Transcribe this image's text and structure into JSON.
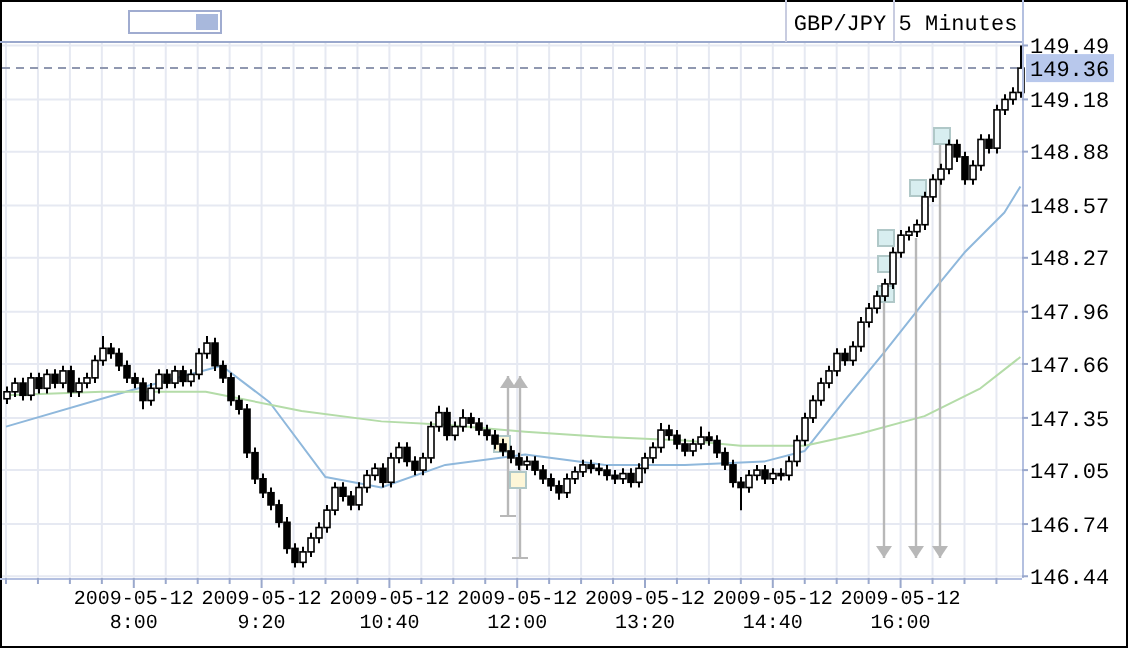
{
  "chart_data": {
    "type": "candlestick",
    "title": "GBP/JPY",
    "subtitle": "5 Minutes",
    "x": [
      "2009-05-12T06:40",
      "2009-05-12T06:45",
      "2009-05-12T06:50",
      "2009-05-12T06:55",
      "2009-05-12T07:00",
      "2009-05-12T07:05",
      "2009-05-12T07:10",
      "2009-05-12T07:15",
      "2009-05-12T07:20",
      "2009-05-12T07:25",
      "2009-05-12T07:30",
      "2009-05-12T07:35",
      "2009-05-12T07:40",
      "2009-05-12T07:45",
      "2009-05-12T07:50",
      "2009-05-12T07:55",
      "2009-05-12T08:00",
      "2009-05-12T08:05",
      "2009-05-12T08:10",
      "2009-05-12T08:15",
      "2009-05-12T08:20",
      "2009-05-12T08:25",
      "2009-05-12T08:30",
      "2009-05-12T08:35",
      "2009-05-12T08:40",
      "2009-05-12T08:45",
      "2009-05-12T08:50",
      "2009-05-12T08:55",
      "2009-05-12T09:00",
      "2009-05-12T09:05",
      "2009-05-12T09:10",
      "2009-05-12T09:15",
      "2009-05-12T09:20",
      "2009-05-12T09:25",
      "2009-05-12T09:30",
      "2009-05-12T09:35",
      "2009-05-12T09:40",
      "2009-05-12T09:45",
      "2009-05-12T09:50",
      "2009-05-12T09:55",
      "2009-05-12T10:00",
      "2009-05-12T10:05",
      "2009-05-12T10:10",
      "2009-05-12T10:15",
      "2009-05-12T10:20",
      "2009-05-12T10:25",
      "2009-05-12T10:30",
      "2009-05-12T10:35",
      "2009-05-12T10:40",
      "2009-05-12T10:45",
      "2009-05-12T10:50",
      "2009-05-12T10:55",
      "2009-05-12T11:00",
      "2009-05-12T11:05",
      "2009-05-12T11:10",
      "2009-05-12T11:15",
      "2009-05-12T11:20",
      "2009-05-12T11:25",
      "2009-05-12T11:30",
      "2009-05-12T11:35",
      "2009-05-12T11:40",
      "2009-05-12T11:45",
      "2009-05-12T11:50",
      "2009-05-12T11:55",
      "2009-05-12T12:00",
      "2009-05-12T12:05",
      "2009-05-12T12:10",
      "2009-05-12T12:15",
      "2009-05-12T12:20",
      "2009-05-12T12:25",
      "2009-05-12T12:30",
      "2009-05-12T12:35",
      "2009-05-12T12:40",
      "2009-05-12T12:45",
      "2009-05-12T12:50",
      "2009-05-12T12:55",
      "2009-05-12T13:00",
      "2009-05-12T13:05",
      "2009-05-12T13:10",
      "2009-05-12T13:15",
      "2009-05-12T13:20",
      "2009-05-12T13:25",
      "2009-05-12T13:30",
      "2009-05-12T13:35",
      "2009-05-12T13:40",
      "2009-05-12T13:45",
      "2009-05-12T13:50",
      "2009-05-12T13:55",
      "2009-05-12T14:00",
      "2009-05-12T14:05",
      "2009-05-12T14:10",
      "2009-05-12T14:15",
      "2009-05-12T14:20",
      "2009-05-12T14:25",
      "2009-05-12T14:30",
      "2009-05-12T14:35",
      "2009-05-12T14:40",
      "2009-05-12T14:45",
      "2009-05-12T14:50",
      "2009-05-12T14:55",
      "2009-05-12T15:00",
      "2009-05-12T15:05",
      "2009-05-12T15:10",
      "2009-05-12T15:15",
      "2009-05-12T15:20",
      "2009-05-12T15:25",
      "2009-05-12T15:30",
      "2009-05-12T15:35",
      "2009-05-12T15:40",
      "2009-05-12T15:45",
      "2009-05-12T15:50",
      "2009-05-12T15:55",
      "2009-05-12T16:00",
      "2009-05-12T16:05",
      "2009-05-12T16:10",
      "2009-05-12T16:15",
      "2009-05-12T16:20",
      "2009-05-12T16:25",
      "2009-05-12T16:30",
      "2009-05-12T16:35",
      "2009-05-12T16:40",
      "2009-05-12T16:45",
      "2009-05-12T16:50",
      "2009-05-12T16:55",
      "2009-05-12T17:00",
      "2009-05-12T17:05",
      "2009-05-12T17:10",
      "2009-05-12T17:15"
    ],
    "ohlc": [
      [
        147.46,
        147.53,
        147.43,
        147.5
      ],
      [
        147.5,
        147.58,
        147.47,
        147.55
      ],
      [
        147.55,
        147.58,
        147.45,
        147.48
      ],
      [
        147.48,
        147.61,
        147.45,
        147.58
      ],
      [
        147.58,
        147.61,
        147.49,
        147.52
      ],
      [
        147.52,
        147.63,
        147.49,
        147.6
      ],
      [
        147.6,
        147.63,
        147.52,
        147.55
      ],
      [
        147.55,
        147.65,
        147.52,
        147.62
      ],
      [
        147.62,
        147.65,
        147.47,
        147.5
      ],
      [
        147.5,
        147.58,
        147.47,
        147.55
      ],
      [
        147.55,
        147.61,
        147.52,
        147.58
      ],
      [
        147.58,
        147.71,
        147.55,
        147.68
      ],
      [
        147.68,
        147.82,
        147.65,
        147.75
      ],
      [
        147.75,
        147.78,
        147.69,
        147.72
      ],
      [
        147.72,
        147.75,
        147.62,
        147.65
      ],
      [
        147.65,
        147.68,
        147.55,
        147.58
      ],
      [
        147.58,
        147.61,
        147.52,
        147.55
      ],
      [
        147.55,
        147.58,
        147.4,
        147.45
      ],
      [
        147.45,
        147.55,
        147.42,
        147.52
      ],
      [
        147.52,
        147.63,
        147.49,
        147.6
      ],
      [
        147.6,
        147.63,
        147.52,
        147.55
      ],
      [
        147.55,
        147.65,
        147.52,
        147.62
      ],
      [
        147.62,
        147.65,
        147.53,
        147.56
      ],
      [
        147.56,
        147.63,
        147.53,
        147.6
      ],
      [
        147.6,
        147.75,
        147.57,
        147.72
      ],
      [
        147.72,
        147.82,
        147.69,
        147.78
      ],
      [
        147.78,
        147.81,
        147.62,
        147.65
      ],
      [
        147.65,
        147.68,
        147.55,
        147.58
      ],
      [
        147.58,
        147.61,
        147.42,
        147.45
      ],
      [
        147.45,
        147.48,
        147.37,
        147.4
      ],
      [
        147.4,
        147.43,
        147.12,
        147.15
      ],
      [
        147.15,
        147.18,
        146.97,
        147.0
      ],
      [
        147.0,
        147.03,
        146.89,
        146.92
      ],
      [
        146.92,
        146.95,
        146.82,
        146.85
      ],
      [
        146.85,
        146.88,
        146.72,
        146.75
      ],
      [
        146.75,
        146.78,
        146.57,
        146.6
      ],
      [
        146.6,
        146.63,
        146.49,
        146.52
      ],
      [
        146.52,
        146.61,
        146.49,
        146.58
      ],
      [
        146.58,
        146.69,
        146.55,
        146.66
      ],
      [
        146.66,
        146.75,
        146.63,
        146.72
      ],
      [
        146.72,
        146.85,
        146.69,
        146.82
      ],
      [
        146.82,
        146.98,
        146.79,
        146.95
      ],
      [
        146.95,
        146.98,
        146.87,
        146.9
      ],
      [
        146.9,
        146.93,
        146.82,
        146.85
      ],
      [
        146.85,
        146.98,
        146.82,
        146.95
      ],
      [
        146.95,
        147.05,
        146.92,
        147.02
      ],
      [
        147.02,
        147.09,
        146.99,
        147.06
      ],
      [
        147.06,
        147.09,
        146.95,
        146.98
      ],
      [
        146.98,
        147.15,
        146.95,
        147.12
      ],
      [
        147.12,
        147.21,
        147.09,
        147.18
      ],
      [
        147.18,
        147.21,
        147.07,
        147.1
      ],
      [
        147.1,
        147.13,
        147.02,
        147.05
      ],
      [
        147.05,
        147.15,
        147.02,
        147.12
      ],
      [
        147.12,
        147.33,
        147.09,
        147.3
      ],
      [
        147.3,
        147.42,
        147.27,
        147.38
      ],
      [
        147.38,
        147.41,
        147.22,
        147.25
      ],
      [
        147.25,
        147.33,
        147.22,
        147.3
      ],
      [
        147.3,
        147.4,
        147.27,
        147.35
      ],
      [
        147.35,
        147.38,
        147.29,
        147.32
      ],
      [
        147.32,
        147.35,
        147.25,
        147.28
      ],
      [
        147.28,
        147.31,
        147.22,
        147.25
      ],
      [
        147.25,
        147.28,
        147.17,
        147.2
      ],
      [
        147.2,
        147.23,
        147.13,
        147.16
      ],
      [
        147.16,
        147.19,
        147.09,
        147.12
      ],
      [
        147.12,
        147.15,
        147.05,
        147.08
      ],
      [
        147.08,
        147.13,
        147.05,
        147.1
      ],
      [
        147.1,
        147.13,
        147.02,
        147.05
      ],
      [
        147.05,
        147.08,
        146.97,
        147.0
      ],
      [
        147.0,
        147.03,
        146.93,
        146.96
      ],
      [
        146.96,
        146.99,
        146.88,
        146.92
      ],
      [
        146.92,
        147.03,
        146.89,
        147.0
      ],
      [
        147.0,
        147.07,
        146.97,
        147.04
      ],
      [
        147.04,
        147.11,
        147.01,
        147.08
      ],
      [
        147.08,
        147.11,
        147.03,
        147.06
      ],
      [
        147.06,
        147.09,
        147.02,
        147.05
      ],
      [
        147.05,
        147.08,
        146.99,
        147.02
      ],
      [
        147.02,
        147.05,
        146.97,
        147.0
      ],
      [
        147.0,
        147.06,
        146.97,
        147.03
      ],
      [
        147.03,
        147.06,
        146.95,
        146.98
      ],
      [
        146.98,
        147.09,
        146.95,
        147.06
      ],
      [
        147.06,
        147.15,
        147.03,
        147.12
      ],
      [
        147.12,
        147.21,
        147.09,
        147.18
      ],
      [
        147.18,
        147.32,
        147.15,
        147.28
      ],
      [
        147.28,
        147.31,
        147.22,
        147.25
      ],
      [
        147.25,
        147.28,
        147.17,
        147.2
      ],
      [
        147.2,
        147.23,
        147.13,
        147.16
      ],
      [
        147.16,
        147.23,
        147.13,
        147.2
      ],
      [
        147.2,
        147.3,
        147.17,
        147.24
      ],
      [
        147.24,
        147.27,
        147.19,
        147.22
      ],
      [
        147.22,
        147.25,
        147.12,
        147.15
      ],
      [
        147.15,
        147.18,
        147.05,
        147.08
      ],
      [
        147.08,
        147.11,
        146.95,
        146.98
      ],
      [
        146.98,
        147.01,
        146.82,
        146.95
      ],
      [
        146.95,
        147.05,
        146.92,
        147.02
      ],
      [
        147.02,
        147.08,
        146.99,
        147.05
      ],
      [
        147.05,
        147.08,
        146.97,
        147.0
      ],
      [
        147.0,
        147.06,
        146.97,
        147.03
      ],
      [
        147.03,
        147.06,
        146.99,
        147.02
      ],
      [
        147.02,
        147.13,
        146.99,
        147.1
      ],
      [
        147.1,
        147.25,
        147.07,
        147.22
      ],
      [
        147.22,
        147.38,
        147.19,
        147.35
      ],
      [
        147.35,
        147.48,
        147.32,
        147.45
      ],
      [
        147.45,
        147.58,
        147.42,
        147.55
      ],
      [
        147.55,
        147.65,
        147.52,
        147.62
      ],
      [
        147.62,
        147.75,
        147.59,
        147.72
      ],
      [
        147.72,
        147.75,
        147.65,
        147.68
      ],
      [
        147.68,
        147.79,
        147.65,
        147.76
      ],
      [
        147.76,
        147.93,
        147.73,
        147.9
      ],
      [
        147.9,
        148.01,
        147.87,
        147.98
      ],
      [
        147.98,
        148.08,
        147.95,
        148.05
      ],
      [
        148.05,
        148.15,
        148.02,
        148.12
      ],
      [
        148.12,
        148.33,
        148.09,
        148.3
      ],
      [
        148.3,
        148.43,
        148.27,
        148.4
      ],
      [
        148.4,
        148.45,
        148.37,
        148.42
      ],
      [
        148.42,
        148.49,
        148.39,
        148.46
      ],
      [
        148.46,
        148.65,
        148.43,
        148.62
      ],
      [
        148.62,
        148.75,
        148.59,
        148.72
      ],
      [
        148.72,
        148.81,
        148.69,
        148.78
      ],
      [
        148.78,
        148.95,
        148.75,
        148.92
      ],
      [
        148.92,
        148.95,
        148.82,
        148.85
      ],
      [
        148.85,
        148.88,
        148.69,
        148.72
      ],
      [
        148.72,
        148.83,
        148.69,
        148.8
      ],
      [
        148.8,
        148.98,
        148.77,
        148.95
      ],
      [
        148.95,
        148.98,
        148.87,
        148.9
      ],
      [
        148.9,
        149.15,
        148.87,
        149.12
      ],
      [
        149.12,
        149.21,
        149.09,
        149.18
      ],
      [
        149.18,
        149.25,
        149.15,
        149.22
      ],
      [
        149.22,
        149.49,
        149.19,
        149.36
      ]
    ],
    "series": [
      {
        "type": "line",
        "color": "#8fb8dc",
        "x": [
          "2009-05-12T06:40",
          "2009-05-12T07:55",
          "2009-05-12T08:55",
          "2009-05-12T09:25",
          "2009-05-12T10:00",
          "2009-05-12T10:35",
          "2009-05-12T11:15",
          "2009-05-12T12:05",
          "2009-05-12T12:55",
          "2009-05-12T13:45",
          "2009-05-12T14:35",
          "2009-05-12T15:00",
          "2009-05-12T15:25",
          "2009-05-12T15:50",
          "2009-05-12T16:15",
          "2009-05-12T16:40",
          "2009-05-12T17:05",
          "2009-05-12T17:15"
        ],
        "values": [
          147.3,
          147.5,
          147.65,
          147.44,
          147.01,
          146.95,
          147.08,
          147.14,
          147.08,
          147.08,
          147.1,
          147.16,
          147.45,
          147.73,
          148.02,
          148.3,
          148.53,
          148.68
        ]
      },
      {
        "type": "line",
        "color": "#b4dca8",
        "x": [
          "2009-05-12T06:40",
          "2009-05-12T07:40",
          "2009-05-12T08:45",
          "2009-05-12T09:45",
          "2009-05-12T10:35",
          "2009-05-12T11:15",
          "2009-05-12T12:05",
          "2009-05-12T12:55",
          "2009-05-12T13:45",
          "2009-05-12T14:20",
          "2009-05-12T15:00",
          "2009-05-12T15:35",
          "2009-05-12T16:15",
          "2009-05-12T16:50",
          "2009-05-12T17:15"
        ],
        "values": [
          147.48,
          147.5,
          147.5,
          147.39,
          147.33,
          147.31,
          147.27,
          147.24,
          147.22,
          147.19,
          147.19,
          147.26,
          147.36,
          147.52,
          147.7
        ]
      }
    ],
    "xlim": [
      "2009-05-12T06:37:30",
      "2009-05-12T17:16"
    ],
    "xticks": [
      {
        "value": "2009-05-12T06:40",
        "label": null
      },
      {
        "value": "2009-05-12T07:00",
        "label": null
      },
      {
        "value": "2009-05-12T07:20",
        "label": null
      },
      {
        "value": "2009-05-12T07:40",
        "label": null
      },
      {
        "value": "2009-05-12T08:00",
        "label": "2009-05-12 8:00"
      },
      {
        "value": "2009-05-12T08:20",
        "label": null
      },
      {
        "value": "2009-05-12T08:40",
        "label": null
      },
      {
        "value": "2009-05-12T09:00",
        "label": null
      },
      {
        "value": "2009-05-12T09:20",
        "label": "2009-05-12 9:20"
      },
      {
        "value": "2009-05-12T09:40",
        "label": null
      },
      {
        "value": "2009-05-12T10:00",
        "label": null
      },
      {
        "value": "2009-05-12T10:20",
        "label": null
      },
      {
        "value": "2009-05-12T10:40",
        "label": "2009-05-12 10:40"
      },
      {
        "value": "2009-05-12T11:00",
        "label": null
      },
      {
        "value": "2009-05-12T11:20",
        "label": null
      },
      {
        "value": "2009-05-12T11:40",
        "label": null
      },
      {
        "value": "2009-05-12T12:00",
        "label": "2009-05-12 12:00"
      },
      {
        "value": "2009-05-12T12:20",
        "label": null
      },
      {
        "value": "2009-05-12T12:40",
        "label": null
      },
      {
        "value": "2009-05-12T13:00",
        "label": null
      },
      {
        "value": "2009-05-12T13:20",
        "label": "2009-05-12 13:20"
      },
      {
        "value": "2009-05-12T13:40",
        "label": null
      },
      {
        "value": "2009-05-12T14:00",
        "label": null
      },
      {
        "value": "2009-05-12T14:20",
        "label": null
      },
      {
        "value": "2009-05-12T14:40",
        "label": "2009-05-12 14:40"
      },
      {
        "value": "2009-05-12T15:00",
        "label": null
      },
      {
        "value": "2009-05-12T15:20",
        "label": null
      },
      {
        "value": "2009-05-12T15:40",
        "label": null
      },
      {
        "value": "2009-05-12T16:00",
        "label": "2009-05-12 16:00"
      },
      {
        "value": "2009-05-12T16:20",
        "label": null
      },
      {
        "value": "2009-05-12T16:40",
        "label": null
      },
      {
        "value": "2009-05-12T17:00",
        "label": null
      }
    ],
    "ylim": [
      146.43,
      149.51
    ],
    "yticks": [
      146.44,
      146.74,
      147.05,
      147.35,
      147.66,
      147.96,
      148.27,
      148.57,
      148.88,
      149.18,
      149.49
    ],
    "ref_lines": [
      {
        "axis": "y",
        "value": 149.36,
        "label": "149.36",
        "color": "#9098b0",
        "line_style": "dashed"
      }
    ],
    "grid": true
  }
}
